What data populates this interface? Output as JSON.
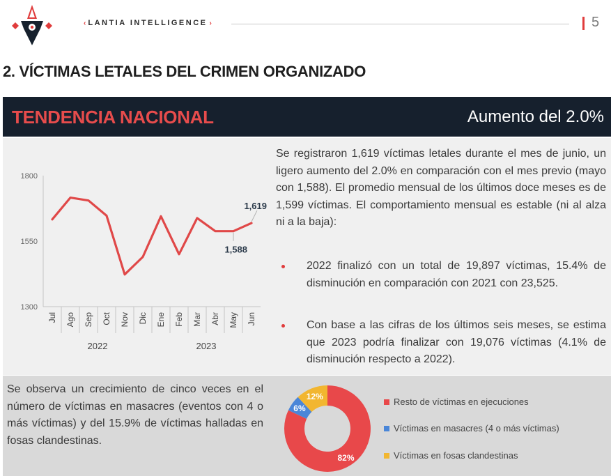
{
  "header": {
    "brand_left_arrow": "‹",
    "brand_name": "LANTIA INTELLIGENCE",
    "brand_right_arrow": "›",
    "page_number": "5"
  },
  "section_title": "2. VÍCTIMAS LETALES DEL CRIMEN ORGANIZADO",
  "banner": {
    "left": "TENDENCIA NACIONAL",
    "right": "Aumento del 2.0%"
  },
  "summary": "Se registraron 1,619 víctimas letales durante el mes de junio, un ligero aumento del 2.0% en comparación con el mes previo (mayo con 1,588). El promedio mensual de los últimos doce meses es de 1,599 víctimas. El comportamiento mensual es estable (ni al alza ni a la baja):",
  "bullets": [
    "2022 finalizó con un total de 19,897 víctimas, 15.4% de disminución en comparación con 2021 con 23,525.",
    "Con base a las cifras de los últimos seis meses, se estima que 2023 podría finalizar con 19,076 víctimas (4.1% de disminución respecto a 2022)."
  ],
  "masacre_text": "Se observa un crecimiento de cinco veces en el número de víctimas en masacres (eventos con 4 o más víctimas) y del 15.9% de víctimas halladas en fosas clandestinas.",
  "colors": {
    "accent": "#e03c3c",
    "line": "#e04848",
    "banner_bg": "#16202d",
    "banner_title": "#e74c4c",
    "blue": "#4a86d8",
    "yellow": "#f2b630"
  },
  "chart_data": [
    {
      "type": "line",
      "categories": [
        "Jul",
        "Ago",
        "Sep",
        "Oct",
        "Nov",
        "Dic",
        "Ene",
        "Feb",
        "Mar",
        "Abr",
        "May",
        "Jun"
      ],
      "year_groups": [
        {
          "label": "2022",
          "count": 6
        },
        {
          "label": "2023",
          "count": 6
        }
      ],
      "series": [
        {
          "values": [
            1633,
            1716,
            1705,
            1647,
            1423,
            1490,
            1645,
            1500,
            1638,
            1588,
            1588,
            1619
          ]
        }
      ],
      "ylim": [
        1300,
        1800
      ],
      "yticks": [
        1300,
        1550,
        1800
      ],
      "data_labels": [
        {
          "index": 11,
          "text": "1,619"
        },
        {
          "index": 10,
          "text": "1,588"
        }
      ]
    },
    {
      "type": "pie",
      "slices": [
        {
          "label": "Resto de víctimas en ejecuciones",
          "value": 82,
          "text": "82%",
          "color": "#e8484a"
        },
        {
          "label": "Víctimas en masacres (4 o más víctimas)",
          "value": 6,
          "text": "6%",
          "color": "#4a86d8"
        },
        {
          "label": "Víctimas en fosas clandestinas",
          "value": 12,
          "text": "12%",
          "color": "#f2b630"
        }
      ]
    }
  ]
}
